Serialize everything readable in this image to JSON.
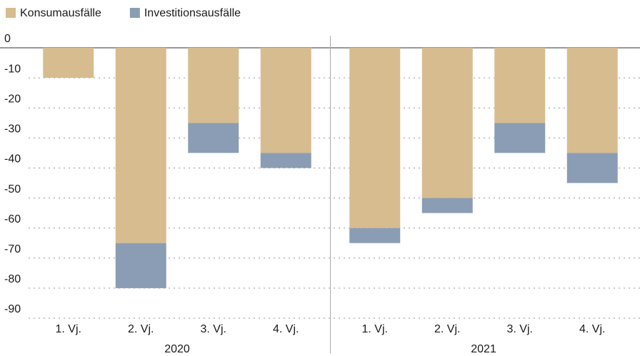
{
  "chart_data": {
    "type": "bar",
    "stacked": true,
    "groups": [
      {
        "name": "2020",
        "categories": [
          "1. Vj.",
          "2. Vj.",
          "3. Vj.",
          "4. Vj."
        ]
      },
      {
        "name": "2021",
        "categories": [
          "1. Vj.",
          "2. Vj.",
          "3. Vj.",
          "4. Vj."
        ]
      }
    ],
    "series": [
      {
        "name": "Konsumausfälle",
        "color": "#d7bc8f",
        "values": [
          -10,
          -65,
          -25,
          -35,
          -60,
          -50,
          -25,
          -35
        ]
      },
      {
        "name": "Investitionsausfälle",
        "color": "#8a9db4",
        "values": [
          0,
          -15,
          -10,
          -5,
          -5,
          -5,
          -10,
          -10
        ]
      }
    ],
    "ylim": [
      -90,
      0
    ],
    "yticks": [
      0,
      -10,
      -20,
      -30,
      -40,
      -50,
      -60,
      -70,
      -80,
      -90
    ],
    "grid": true
  }
}
